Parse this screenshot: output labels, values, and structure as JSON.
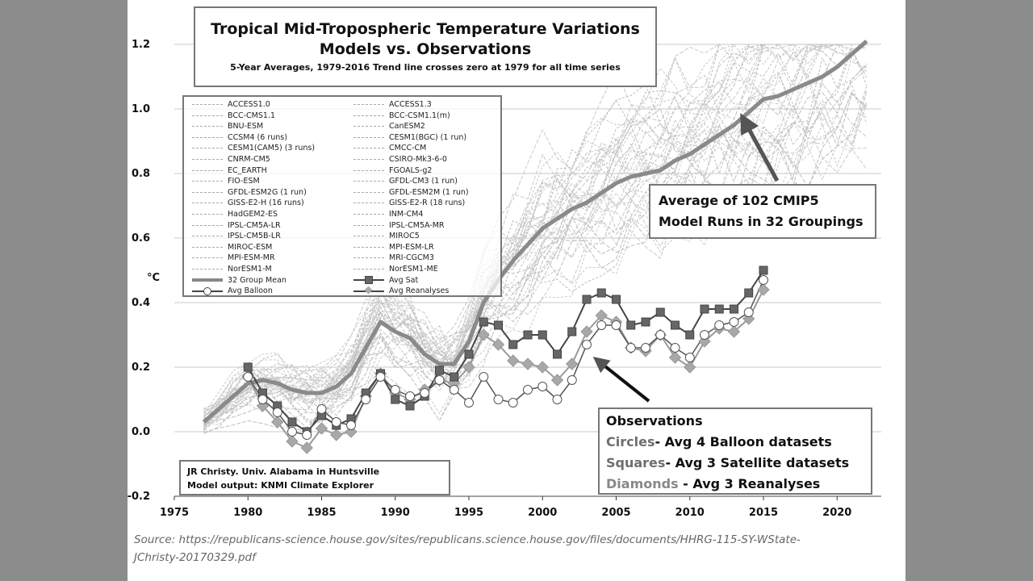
{
  "chart_data": {
    "type": "line",
    "title": "Tropical Mid-Tropospheric Temperature Variations",
    "subtitle": "Models vs. Observations",
    "note": "5-Year Averages, 1979-2016 Trend line crosses zero at 1979 for all time series",
    "ylabel": "°C",
    "xlim": [
      1975,
      2023
    ],
    "ylim": [
      -0.2,
      1.2
    ],
    "x_ticks": [
      1975,
      1980,
      1985,
      1990,
      1995,
      2000,
      2005,
      2010,
      2015,
      2020
    ],
    "y_ticks": [
      -0.2,
      0.0,
      0.2,
      0.4,
      0.6,
      0.8,
      1.0,
      1.2
    ],
    "grid": true,
    "legend": "upper-left",
    "series": [
      {
        "name": "32 Group Mean",
        "style": "thick-line",
        "color": "#8a8a8a",
        "x": [
          1977,
          1978,
          1979,
          1980,
          1981,
          1982,
          1983,
          1984,
          1985,
          1986,
          1987,
          1988,
          1989,
          1990,
          1991,
          1992,
          1993,
          1994,
          1995,
          1996,
          1997,
          1998,
          1999,
          2000,
          2001,
          2002,
          2003,
          2004,
          2005,
          2006,
          2007,
          2008,
          2009,
          2010,
          2011,
          2012,
          2013,
          2014,
          2015,
          2016,
          2017,
          2018,
          2019,
          2020,
          2021,
          2022
        ],
        "values": [
          0.03,
          0.07,
          0.11,
          0.15,
          0.16,
          0.15,
          0.13,
          0.12,
          0.12,
          0.14,
          0.18,
          0.26,
          0.34,
          0.31,
          0.29,
          0.24,
          0.21,
          0.21,
          0.28,
          0.4,
          0.47,
          0.53,
          0.58,
          0.63,
          0.66,
          0.69,
          0.71,
          0.74,
          0.77,
          0.79,
          0.8,
          0.81,
          0.84,
          0.86,
          0.89,
          0.92,
          0.95,
          0.99,
          1.03,
          1.04,
          1.06,
          1.08,
          1.1,
          1.13,
          1.17,
          1.21
        ]
      },
      {
        "name": "Avg Sat",
        "style": "squares",
        "color": "#666666",
        "x": [
          1980,
          1981,
          1982,
          1983,
          1984,
          1985,
          1986,
          1987,
          1988,
          1989,
          1990,
          1991,
          1992,
          1993,
          1994,
          1995,
          1996,
          1997,
          1998,
          1999,
          2000,
          2001,
          2002,
          2003,
          2004,
          2005,
          2006,
          2007,
          2008,
          2009,
          2010,
          2011,
          2012,
          2013,
          2014,
          2015
        ],
        "values": [
          0.2,
          0.12,
          0.08,
          0.03,
          0.0,
          0.05,
          0.02,
          0.04,
          0.12,
          0.18,
          0.1,
          0.08,
          0.11,
          0.19,
          0.17,
          0.24,
          0.34,
          0.33,
          0.27,
          0.3,
          0.3,
          0.24,
          0.31,
          0.41,
          0.43,
          0.41,
          0.33,
          0.34,
          0.37,
          0.33,
          0.3,
          0.38,
          0.38,
          0.38,
          0.43,
          0.5
        ]
      },
      {
        "name": "Avg Balloon",
        "style": "circles",
        "color": "#ffffff",
        "x": [
          1980,
          1981,
          1982,
          1983,
          1984,
          1985,
          1986,
          1987,
          1988,
          1989,
          1990,
          1991,
          1992,
          1993,
          1994,
          1995,
          1996,
          1997,
          1998,
          1999,
          2000,
          2001,
          2002,
          2003,
          2004,
          2005,
          2006,
          2007,
          2008,
          2009,
          2010,
          2011,
          2012,
          2013,
          2014,
          2015
        ],
        "values": [
          0.17,
          0.1,
          0.06,
          0.0,
          -0.01,
          0.07,
          0.03,
          0.02,
          0.1,
          0.17,
          0.13,
          0.11,
          0.12,
          0.16,
          0.13,
          0.09,
          0.17,
          0.1,
          0.09,
          0.13,
          0.14,
          0.1,
          0.16,
          0.27,
          0.33,
          0.33,
          0.26,
          0.26,
          0.3,
          0.26,
          0.23,
          0.3,
          0.33,
          0.34,
          0.37,
          0.47
        ]
      },
      {
        "name": "Avg Reanalyses",
        "style": "diamonds",
        "color": "#a8a8a8",
        "x": [
          1980,
          1981,
          1982,
          1983,
          1984,
          1985,
          1986,
          1987,
          1988,
          1989,
          1990,
          1991,
          1992,
          1993,
          1994,
          1995,
          1996,
          1997,
          1998,
          1999,
          2000,
          2001,
          2002,
          2003,
          2004,
          2005,
          2006,
          2007,
          2008,
          2009,
          2010,
          2011,
          2012,
          2013,
          2014,
          2015
        ],
        "values": [
          0.17,
          0.08,
          0.03,
          -0.03,
          -0.05,
          0.01,
          -0.01,
          0.0,
          0.11,
          0.18,
          0.12,
          0.1,
          0.13,
          0.16,
          0.15,
          0.2,
          0.3,
          0.27,
          0.22,
          0.21,
          0.2,
          0.16,
          0.21,
          0.31,
          0.36,
          0.34,
          0.26,
          0.25,
          0.3,
          0.23,
          0.2,
          0.28,
          0.32,
          0.31,
          0.35,
          0.44
        ]
      }
    ],
    "model_runs_legend": [
      [
        "ACCESS1.0",
        "ACCESS1.3"
      ],
      [
        "BCC-CMS1.1",
        "BCC-CSM1.1(m)"
      ],
      [
        "BNU-ESM",
        "CanESM2"
      ],
      [
        "CCSM4 (6 runs)",
        "CESM1(BGC) (1 run)"
      ],
      [
        "CESM1(CAM5) (3 runs)",
        "CMCC-CM"
      ],
      [
        "CNRM-CM5",
        "CSIRO-Mk3-6-0"
      ],
      [
        "EC_EARTH",
        "FGOALS-g2"
      ],
      [
        "FIO-ESM",
        "GFDL-CM3 (1 run)"
      ],
      [
        "GFDL-ESM2G (1 run)",
        "GFDL-ESM2M (1 run)"
      ],
      [
        "GISS-E2-H (16 runs)",
        "GISS-E2-R (18 runs)"
      ],
      [
        "HadGEM2-ES",
        "INM-CM4"
      ],
      [
        "IPSL-CM5A-LR",
        "IPSL-CM5A-MR"
      ],
      [
        "IPSL-CM5B-LR",
        "MIROC5"
      ],
      [
        "MIROC-ESM",
        "MPI-ESM-LR"
      ],
      [
        "MPI-ESM-MR",
        "MRI-CGCM3"
      ],
      [
        "NorESM1-M",
        "NorESM1-ME"
      ]
    ],
    "annotations": {
      "average_box": [
        "Average of 102 CMIP5",
        "Model Runs in 32 Groupings"
      ],
      "observations_title": "Observations",
      "observations_lines": [
        {
          "key": "Circles",
          "text": "- Avg 4 Balloon datasets"
        },
        {
          "key": "Squares",
          "text": "- Avg 3 Satellite datasets"
        },
        {
          "key": "Diamonds",
          "text": " - Avg 3 Reanalyses"
        }
      ],
      "credit": [
        "JR Christy. Univ. Alabama in Huntsville",
        "Model output: KNMI Climate Explorer"
      ]
    }
  },
  "source": {
    "label": "Source:",
    "line1": "https://republicans-science.house.gov/sites/republicans.science.house.gov/files/documents/HHRG-115-SY-WState-",
    "line2": "JChristy-20170329.pdf"
  }
}
